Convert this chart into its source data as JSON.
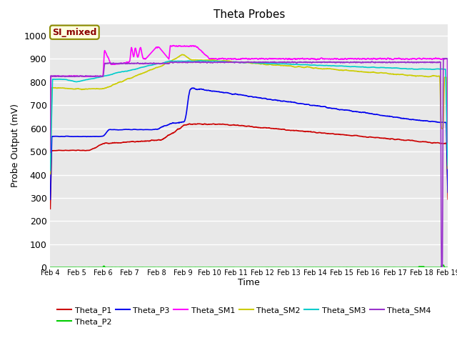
{
  "title": "Theta Probes",
  "xlabel": "Time",
  "ylabel": "Probe Output (mV)",
  "ylim": [
    0,
    1050
  ],
  "yticks": [
    0,
    100,
    200,
    300,
    400,
    500,
    600,
    700,
    800,
    900,
    1000
  ],
  "annotation_text": "SI_mixed",
  "annotation_color": "#8B0000",
  "annotation_bg": "#FFFFE0",
  "annotation_border": "#8B8B00",
  "fig_bg_color": "#FFFFFF",
  "plot_bg_color": "#E8E8E8",
  "grid_color": "#FFFFFF",
  "xtick_labels": [
    "Feb 4",
    "Feb 5",
    "Feb 6",
    "Feb 7",
    "Feb 8",
    "Feb 9",
    "Feb 10",
    "Feb 11",
    "Feb 12",
    "Feb 13",
    "Feb 14",
    "Feb 15",
    "Feb 16",
    "Feb 17",
    "Feb 18",
    "Feb 19"
  ],
  "series": {
    "Theta_P1": {
      "color": "#CC0000",
      "lw": 1.2
    },
    "Theta_P2": {
      "color": "#00CC00",
      "lw": 1.2
    },
    "Theta_P3": {
      "color": "#0000EE",
      "lw": 1.2
    },
    "Theta_SM1": {
      "color": "#FF00FF",
      "lw": 1.2
    },
    "Theta_SM2": {
      "color": "#CCCC00",
      "lw": 1.2
    },
    "Theta_SM3": {
      "color": "#00CCCC",
      "lw": 1.2
    },
    "Theta_SM4": {
      "color": "#9933CC",
      "lw": 1.2
    }
  }
}
